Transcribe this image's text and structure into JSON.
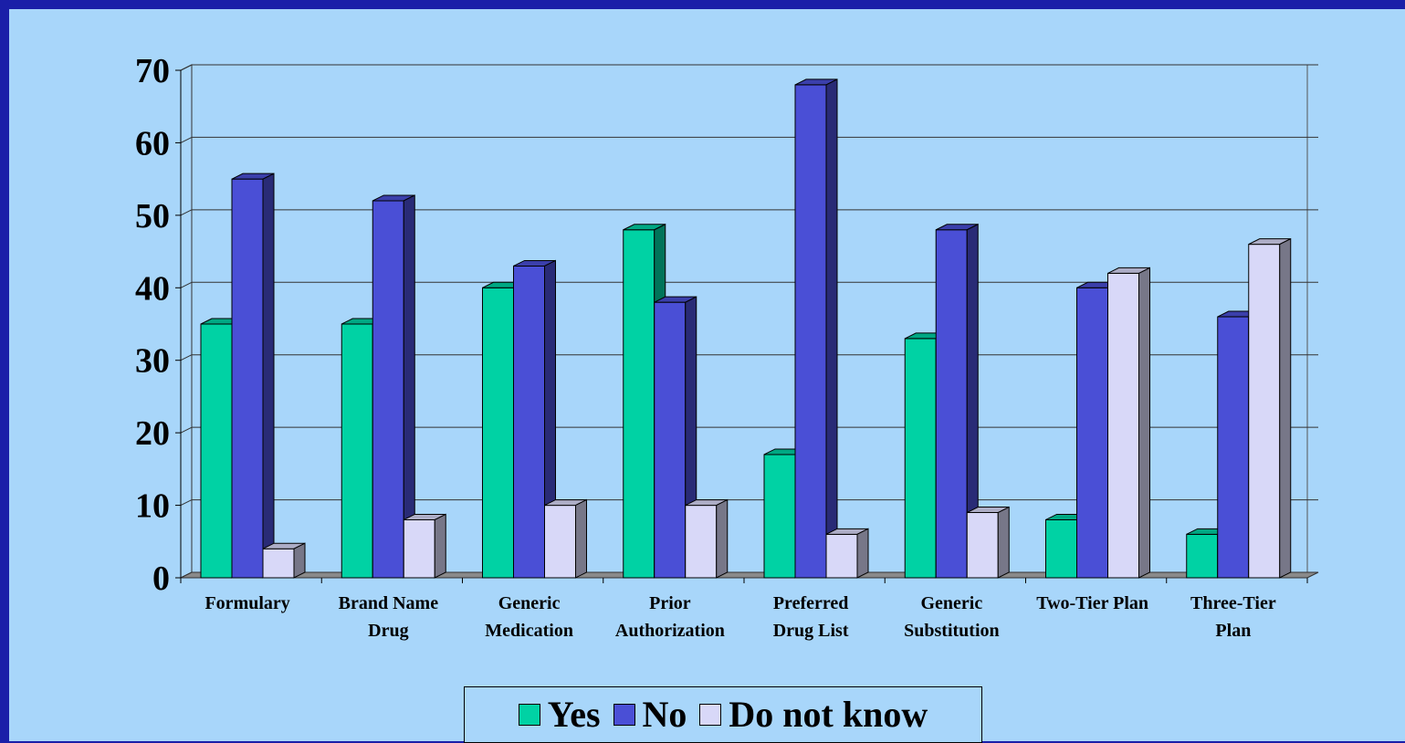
{
  "chart_data": {
    "type": "bar",
    "categories": [
      [
        "Formulary"
      ],
      [
        "Brand Name",
        "Drug"
      ],
      [
        "Generic",
        "Medication"
      ],
      [
        "Prior",
        "Authorization"
      ],
      [
        "Preferred",
        "Drug List"
      ],
      [
        "Generic",
        "Substitution"
      ],
      [
        "Two-Tier Plan"
      ],
      [
        "Three-Tier",
        "Plan"
      ]
    ],
    "series": [
      {
        "name": "Yes",
        "values": [
          35,
          35,
          40,
          48,
          17,
          33,
          8,
          6
        ],
        "color": "#00d2a4"
      },
      {
        "name": "No",
        "values": [
          55,
          52,
          43,
          38,
          68,
          48,
          40,
          36
        ],
        "color": "#4a4fd6"
      },
      {
        "name": "Do not know",
        "values": [
          4,
          8,
          10,
          10,
          6,
          9,
          42,
          46
        ],
        "color": "#d8d8f8"
      }
    ],
    "ylim": [
      0,
      70
    ],
    "yticks": [
      0,
      10,
      20,
      30,
      40,
      50,
      60,
      70
    ],
    "grid": true,
    "legend_position": "bottom",
    "style": "3d-bar"
  }
}
